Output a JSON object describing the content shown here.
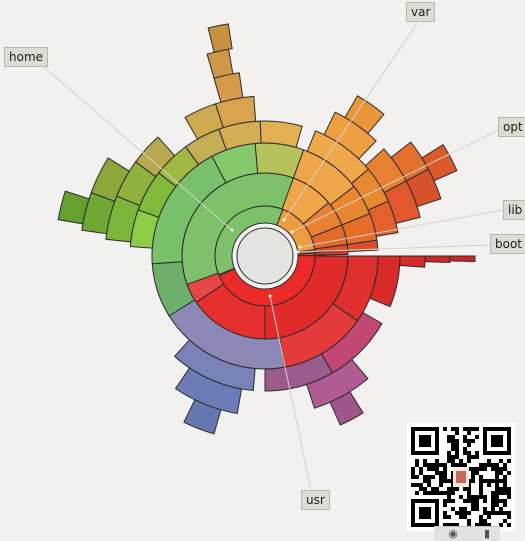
{
  "chart_data": {
    "type": "sunburst",
    "center_color": "#e3e3df",
    "segments": [
      {
        "r": 0,
        "start": -112,
        "end": 21,
        "color": "#7dc26a",
        "name": "seg-home"
      },
      {
        "r": 0,
        "start": 21,
        "end": 83,
        "color": "#ee9c40",
        "name": "seg-var"
      },
      {
        "r": 0,
        "start": 83,
        "end": 86.5,
        "color": "#e4612d",
        "name": "seg-lib"
      },
      {
        "r": 0,
        "start": 86.5,
        "end": 89.5,
        "color": "#d9402b",
        "name": "seg-boot"
      },
      {
        "r": 0,
        "start": 89.5,
        "end": 247,
        "color": "#ed2a2a",
        "name": "seg-usr"
      },
      {
        "r": 1,
        "start": -142,
        "end": 20,
        "color": "#7fc16b"
      },
      {
        "r": 1,
        "start": 20,
        "end": 50,
        "color": "#f0a548"
      },
      {
        "r": 1,
        "start": 50,
        "end": 68,
        "color": "#e98032"
      },
      {
        "r": 1,
        "start": 68,
        "end": 82,
        "color": "#e46a2c"
      },
      {
        "r": 1,
        "start": 82,
        "end": 86,
        "color": "#dd4d2a"
      },
      {
        "r": 1,
        "start": 86,
        "end": 89,
        "color": "#d8362a"
      },
      {
        "r": 1,
        "start": 90,
        "end": 180,
        "color": "#e12b2b"
      },
      {
        "r": 1,
        "start": 180,
        "end": 236,
        "color": "#e62f2f"
      },
      {
        "r": 1,
        "start": 236,
        "end": 250,
        "color": "#e84545"
      },
      {
        "r": 2,
        "start": -94,
        "end": -28,
        "color": "#79c06a"
      },
      {
        "r": 2,
        "start": -28,
        "end": -5,
        "color": "#84c86a"
      },
      {
        "r": 2,
        "start": -5,
        "end": 20,
        "color": "#b6c25c"
      },
      {
        "r": 2,
        "start": 20,
        "end": 52,
        "color": "#f0a54a"
      },
      {
        "r": 2,
        "start": 52,
        "end": 68,
        "color": "#e8872f"
      },
      {
        "r": 2,
        "start": 68,
        "end": 82,
        "color": "#e56d2c"
      },
      {
        "r": 2,
        "start": 82,
        "end": 87,
        "color": "#df4d2c"
      },
      {
        "r": 2,
        "start": 90,
        "end": 125,
        "color": "#df2f2f"
      },
      {
        "r": 2,
        "start": 125,
        "end": 170,
        "color": "#e33b3b"
      },
      {
        "r": 2,
        "start": 170,
        "end": 254,
        "color": "#8d87b6"
      },
      {
        "r": 2,
        "start": -122,
        "end": -94,
        "color": "#6eb06b"
      },
      {
        "r": 3,
        "start": -86,
        "end": -70,
        "color": "#8ccd47"
      },
      {
        "r": 3,
        "start": -70,
        "end": -52,
        "color": "#80bb3c"
      },
      {
        "r": 3,
        "start": -52,
        "end": -36,
        "color": "#9fb844"
      },
      {
        "r": 3,
        "start": -36,
        "end": -20,
        "color": "#c4ad52"
      },
      {
        "r": 3,
        "start": -20,
        "end": -2,
        "color": "#d2ae55"
      },
      {
        "r": 3,
        "start": -2,
        "end": 16,
        "color": "#e0b053"
      },
      {
        "r": 3,
        "start": 22,
        "end": 50,
        "color": "#f0a848"
      },
      {
        "r": 3,
        "start": 50,
        "end": 66,
        "color": "#e9892f"
      },
      {
        "r": 3,
        "start": 66,
        "end": 80,
        "color": "#e3602d"
      },
      {
        "r": 3,
        "start": 90,
        "end": 112,
        "color": "#d92a2a"
      },
      {
        "r": 3,
        "start": 120,
        "end": 150,
        "color": "#c24775"
      },
      {
        "r": 3,
        "start": 150,
        "end": 180,
        "color": "#9b5c8d"
      },
      {
        "r": 3,
        "start": 185,
        "end": 222,
        "color": "#7a82b8"
      },
      {
        "r": 4,
        "start": -84,
        "end": -68,
        "color": "#7bb53a"
      },
      {
        "r": 4,
        "start": -68,
        "end": -54,
        "color": "#8fb23c"
      },
      {
        "r": 4,
        "start": -54,
        "end": -42,
        "color": "#b6a94e"
      },
      {
        "r": 4,
        "start": -30,
        "end": -18,
        "color": "#cfa950"
      },
      {
        "r": 4,
        "start": -18,
        "end": -4,
        "color": "#daa44e"
      },
      {
        "r": 4,
        "start": 26,
        "end": 44,
        "color": "#ee9f3f"
      },
      {
        "r": 4,
        "start": 48,
        "end": 62,
        "color": "#e98031"
      },
      {
        "r": 4,
        "start": 62,
        "end": 76,
        "color": "#e0582b"
      },
      {
        "r": 4,
        "start": 90,
        "end": 94,
        "color": "#d52b2b"
      },
      {
        "r": 4,
        "start": 140,
        "end": 162,
        "color": "#b05b92"
      },
      {
        "r": 4,
        "start": 190,
        "end": 214,
        "color": "#6d7cb6"
      },
      {
        "r": 5,
        "start": -82,
        "end": -70,
        "color": "#6fa833"
      },
      {
        "r": 5,
        "start": -70,
        "end": -58,
        "color": "#8ca839"
      },
      {
        "r": 5,
        "start": -16,
        "end": -8,
        "color": "#d49c48"
      },
      {
        "r": 5,
        "start": 30,
        "end": 40,
        "color": "#e9953a"
      },
      {
        "r": 5,
        "start": 52,
        "end": 62,
        "color": "#e3702e"
      },
      {
        "r": 5,
        "start": 62,
        "end": 72,
        "color": "#d9512a"
      },
      {
        "r": 5,
        "start": 90,
        "end": 92,
        "color": "#cf2828"
      },
      {
        "r": 5,
        "start": 148,
        "end": 156,
        "color": "#9f568a"
      },
      {
        "r": 5,
        "start": 196,
        "end": 206,
        "color": "#6477b0"
      },
      {
        "r": 6,
        "start": -80,
        "end": -72,
        "color": "#65a02f"
      },
      {
        "r": 6,
        "start": -16,
        "end": -10,
        "color": "#cf9846"
      },
      {
        "r": 6,
        "start": 58,
        "end": 66,
        "color": "#dc5a2a"
      },
      {
        "r": 6,
        "start": 90,
        "end": 91.5,
        "color": "#cc2525"
      },
      {
        "r": 7,
        "start": -14,
        "end": -9,
        "color": "#c99243"
      }
    ],
    "labels": [
      {
        "id": "home",
        "text": "home"
      },
      {
        "id": "var",
        "text": "var"
      },
      {
        "id": "opt",
        "text": "opt"
      },
      {
        "id": "lib",
        "text": "lib"
      },
      {
        "id": "boot",
        "text": "boot"
      },
      {
        "id": "usr",
        "text": "usr"
      }
    ]
  }
}
